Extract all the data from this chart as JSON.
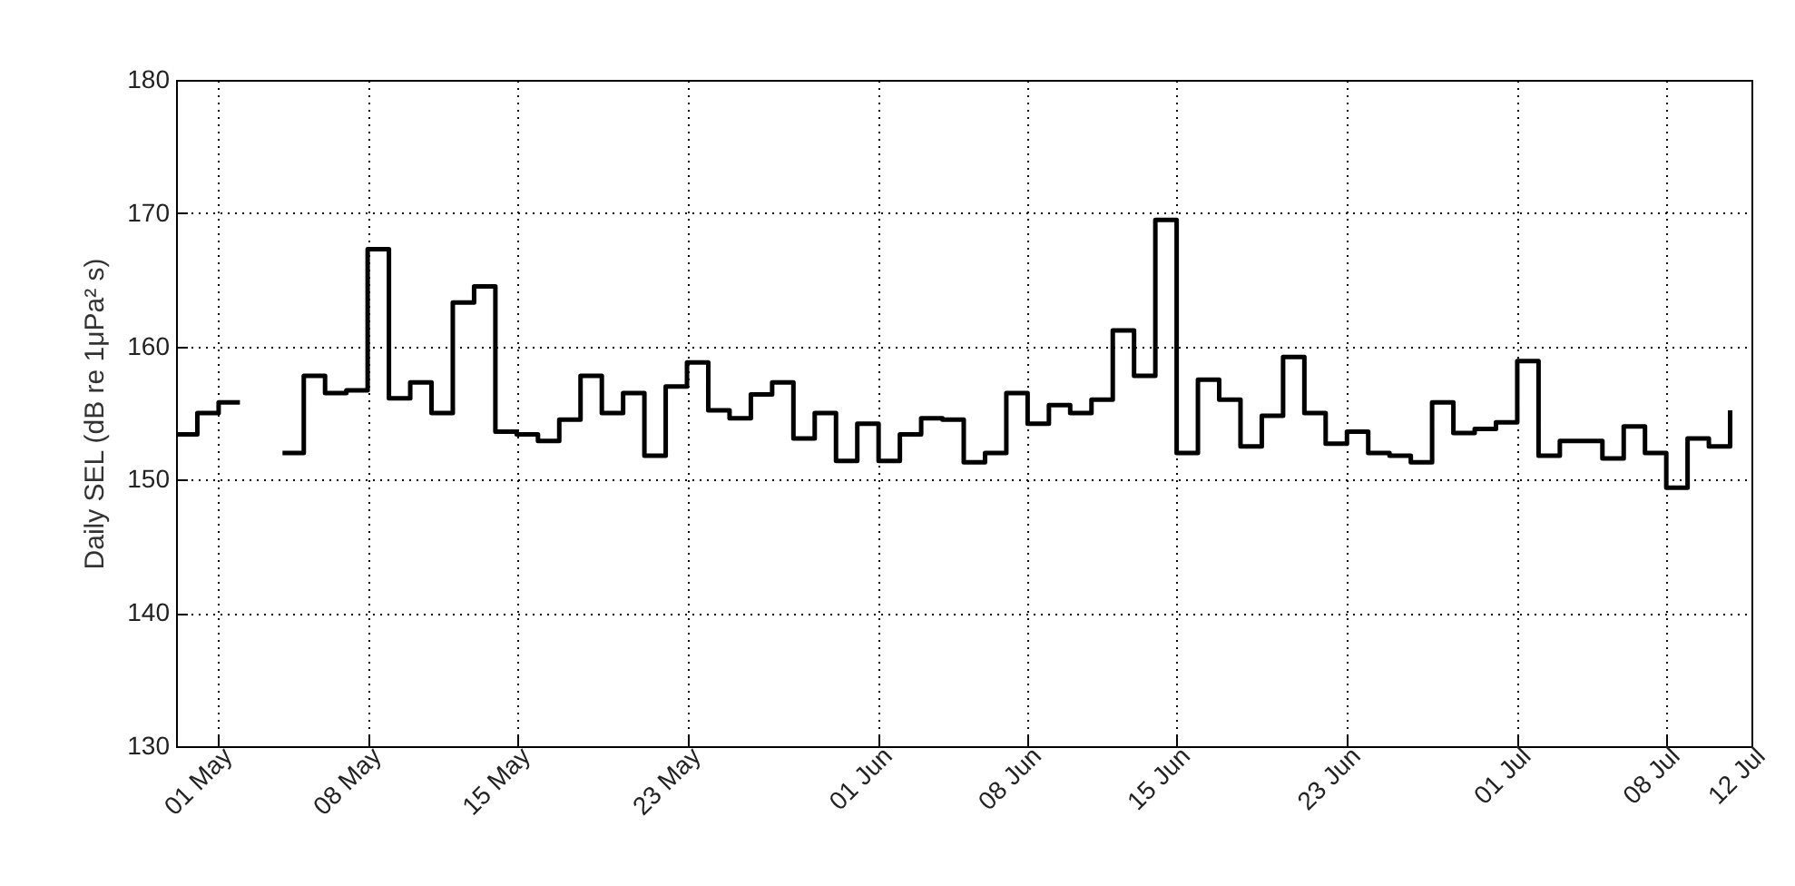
{
  "chart_data": {
    "type": "step",
    "ylabel": "Daily SEL (dB re 1μPa² s)",
    "x": [
      "--04-29",
      "--04-30",
      "--05-01",
      "--05-02",
      "--05-03",
      "--05-04",
      "--05-05",
      "--05-06",
      "--05-07",
      "--05-08",
      "--05-09",
      "--05-10",
      "--05-11",
      "--05-12",
      "--05-13",
      "--05-14",
      "--05-15",
      "--05-16",
      "--05-17",
      "--05-18",
      "--05-19",
      "--05-20",
      "--05-21",
      "--05-22",
      "--05-23",
      "--05-24",
      "--05-25",
      "--05-26",
      "--05-27",
      "--05-28",
      "--05-29",
      "--05-30",
      "--05-31",
      "--06-01",
      "--06-02",
      "--06-03",
      "--06-04",
      "--06-05",
      "--06-06",
      "--06-07",
      "--06-08",
      "--06-09",
      "--06-10",
      "--06-11",
      "--06-12",
      "--06-13",
      "--06-14",
      "--06-15",
      "--06-16",
      "--06-17",
      "--06-18",
      "--06-19",
      "--06-20",
      "--06-21",
      "--06-22",
      "--06-23",
      "--06-24",
      "--06-25",
      "--06-26",
      "--06-27",
      "--06-28",
      "--06-29",
      "--06-30",
      "--07-01",
      "--07-02",
      "--07-03",
      "--07-04",
      "--07-05",
      "--07-06",
      "--07-07",
      "--07-08",
      "--07-09",
      "--07-10",
      "--07-11"
    ],
    "series": [
      {
        "color": "#000000",
        "values": [
          153.4,
          155.0,
          155.8,
          null,
          null,
          152.0,
          157.8,
          156.5,
          156.7,
          167.3,
          156.1,
          157.3,
          155.0,
          163.3,
          164.5,
          153.6,
          153.4,
          152.9,
          154.5,
          157.8,
          155.0,
          156.5,
          151.8,
          157.0,
          158.8,
          155.2,
          154.6,
          156.4,
          157.3,
          153.1,
          155.0,
          151.4,
          154.2,
          151.4,
          153.4,
          154.6,
          154.5,
          151.3,
          152.0,
          156.5,
          154.2,
          155.6,
          155.0,
          156.0,
          161.2,
          157.8,
          169.5,
          152.0,
          157.5,
          156.0,
          152.5,
          154.8,
          159.2,
          155.0,
          152.7,
          153.6,
          152.0,
          151.8,
          151.3,
          155.8,
          153.5,
          153.8,
          154.3,
          158.9,
          151.8,
          152.9,
          152.9,
          151.6,
          154.0,
          152.0,
          149.4,
          153.1,
          152.5,
          155.2
        ]
      }
    ],
    "xlim": [
      "--04-29",
      "--07-12"
    ],
    "xticks": [
      {
        "value": "--05-01",
        "label": "01 May"
      },
      {
        "value": "--05-08",
        "label": "08 May"
      },
      {
        "value": "--05-15",
        "label": "15 May"
      },
      {
        "value": "--05-23",
        "label": "23 May"
      },
      {
        "value": "--06-01",
        "label": "01 Jun"
      },
      {
        "value": "--06-08",
        "label": "08 Jun"
      },
      {
        "value": "--06-15",
        "label": "15 Jun"
      },
      {
        "value": "--06-23",
        "label": "23 Jun"
      },
      {
        "value": "--07-01",
        "label": "01 Jul"
      },
      {
        "value": "--07-08",
        "label": "08 Jul"
      },
      {
        "value": "--07-12",
        "label": "12 Jul"
      }
    ],
    "ylim": [
      130,
      180
    ],
    "yticks": [
      130,
      140,
      150,
      160,
      170,
      180
    ],
    "grid": true,
    "line_style": "solid"
  }
}
